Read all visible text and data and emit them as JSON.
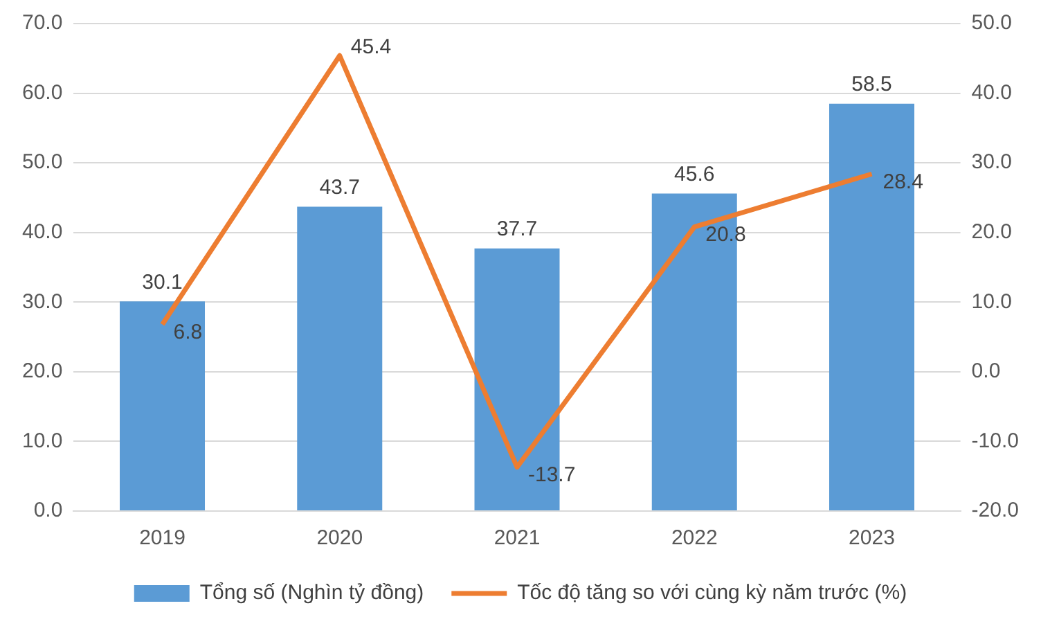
{
  "chart_data": {
    "type": "bar",
    "categories": [
      "2019",
      "2020",
      "2021",
      "2022",
      "2023"
    ],
    "series": [
      {
        "name": "Tổng số (Nghìn tỷ đồng)",
        "color": "#5b9bd5",
        "values": [
          30.1,
          43.7,
          37.7,
          45.6,
          58.5
        ]
      },
      {
        "name": "Tốc độ tăng so với cùng kỳ năm trước (%)",
        "type": "line",
        "axis": "y2",
        "color": "#ed7d31",
        "values": [
          6.8,
          45.4,
          -13.7,
          20.8,
          28.4
        ]
      }
    ],
    "ylim": [
      0,
      70
    ],
    "yticks": [
      {
        "value": 0,
        "label": "0.0"
      },
      {
        "value": 10,
        "label": "10.0"
      },
      {
        "value": 20,
        "label": "20.0"
      },
      {
        "value": 30,
        "label": "30.0"
      },
      {
        "value": 40,
        "label": "40.0"
      },
      {
        "value": 50,
        "label": "50.0"
      },
      {
        "value": 60,
        "label": "60.0"
      },
      {
        "value": 70,
        "label": "70.0"
      }
    ],
    "y2lim": [
      -20,
      50
    ],
    "y2ticks": [
      {
        "value": -20,
        "label": "-20.0"
      },
      {
        "value": -10,
        "label": "-10.0"
      },
      {
        "value": 0,
        "label": "0.0"
      },
      {
        "value": 10,
        "label": "10.0"
      },
      {
        "value": 20,
        "label": "20.0"
      },
      {
        "value": 30,
        "label": "30.0"
      },
      {
        "value": 40,
        "label": "40.0"
      },
      {
        "value": 50,
        "label": "50.0"
      }
    ],
    "grid": "y",
    "legend": "bottom",
    "data_labels": true,
    "marker": "none",
    "line_style": "solid"
  }
}
